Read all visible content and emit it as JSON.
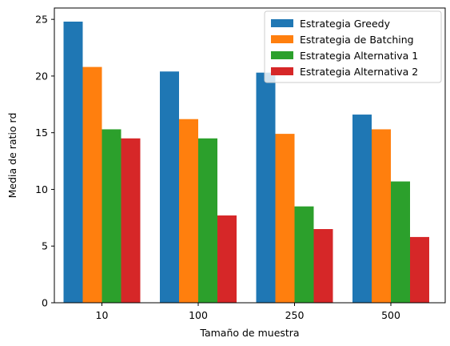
{
  "chart_data": {
    "type": "bar",
    "title": "",
    "xlabel": "Tamaño de muestra",
    "ylabel": "Media de ratio rd",
    "categories": [
      "10",
      "100",
      "250",
      "500"
    ],
    "ylim": [
      0,
      26
    ],
    "yticks": [
      0,
      5,
      10,
      15,
      20,
      25
    ],
    "grid": false,
    "legend_position": "top-right",
    "series": [
      {
        "name": "Estrategia Greedy",
        "color": "#1f77b4",
        "values": [
          24.8,
          20.4,
          20.3,
          16.6
        ]
      },
      {
        "name": "Estrategia de Batching",
        "color": "#ff7f0e",
        "values": [
          20.8,
          16.2,
          14.9,
          15.3
        ]
      },
      {
        "name": "Estrategia Alternativa 1",
        "color": "#2ca02c",
        "values": [
          15.3,
          14.5,
          8.5,
          10.7
        ]
      },
      {
        "name": "Estrategia Alternativa 2",
        "color": "#d62728",
        "values": [
          14.5,
          7.7,
          6.5,
          5.8
        ]
      }
    ]
  }
}
